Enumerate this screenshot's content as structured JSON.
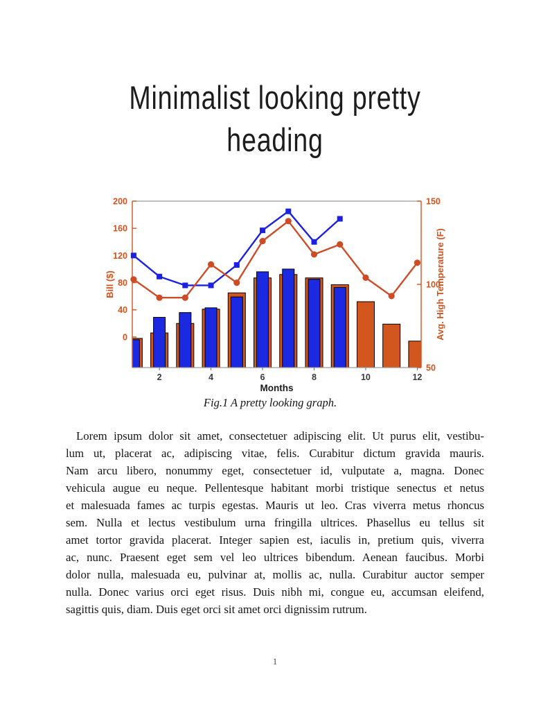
{
  "page": {
    "number": "1"
  },
  "heading": {
    "line1": "Minimalist looking pretty",
    "line2": "heading"
  },
  "figure": {
    "caption": "Fig.1 A pretty looking graph."
  },
  "body": {
    "lines": [
      "Lorem ipsum dolor sit amet, consectetuer adipiscing elit. Ut purus elit, vestibu-",
      "lum ut, placerat ac, adipiscing vitae, felis. Curabitur dictum gravida mauris.",
      "Nam arcu libero, nonummy eget, consectetuer id, vulputate a, magna. Donec",
      "vehicula augue eu neque. Pellentesque habitant morbi tristique senectus et netus",
      "et malesuada fames ac turpis egestas. Mauris ut leo. Cras viverra metus rhoncus",
      "sem. Nulla et lectus vestibulum urna fringilla ultrices. Phasellus eu tellus sit",
      "amet tortor gravida placerat. Integer sapien est, iaculis in, pretium quis, viverra",
      "ac, nunc. Praesent eget sem vel leo ultrices bibendum. Aenean faucibus. Morbi",
      "dolor nulla, malesuada eu, pulvinar at, mollis ac, nulla. Curabitur auctor semper",
      "nulla. Donec varius orci eget risus. Duis nibh mi, congue eu, accumsan eleifend,",
      "sagittis quis, diam. Duis eget orci sit amet orci dignissim rutrum."
    ]
  },
  "chart_data": {
    "type": "combo-bar-line",
    "x": [
      1,
      2,
      3,
      4,
      5,
      6,
      7,
      8,
      9,
      10,
      11,
      12
    ],
    "x_axis": {
      "label": "Months",
      "ticks": [
        2,
        4,
        6,
        8,
        10,
        12
      ],
      "range": [
        0.95,
        12.15
      ],
      "tick_color": "#3a3a3a",
      "label_color": "#1a1a1a"
    },
    "left_axis": {
      "label": "Bill ($)",
      "ticks": [
        0,
        40,
        80,
        120,
        160,
        200
      ],
      "range": [
        -45,
        200
      ],
      "color": "#d2521e"
    },
    "right_axis": {
      "label": "Avg. High Temperature (F)",
      "ticks": [
        50,
        100,
        150
      ],
      "range": [
        50,
        150
      ],
      "color": "#d2521e"
    },
    "box_color": "#9b9b9b",
    "series": [
      {
        "name": "orange-bars-bill",
        "type": "bar",
        "axis": "left",
        "color": "#d2571e",
        "values": [
          -2,
          6,
          20,
          41,
          65,
          87,
          92,
          87,
          77,
          52,
          19,
          -6
        ]
      },
      {
        "name": "blue-bars-bill",
        "type": "bar",
        "axis": "left",
        "color": "#1b2ae0",
        "values": [
          -4,
          29,
          36,
          43,
          59,
          96,
          100,
          85,
          73,
          null,
          null,
          null
        ]
      },
      {
        "name": "blue-line-bill",
        "type": "line",
        "marker": "square",
        "axis": "left",
        "color": "#1b20e2",
        "values": [
          120,
          89,
          76,
          76,
          106,
          157,
          185,
          140,
          174,
          null,
          null,
          null
        ]
      },
      {
        "name": "orange-line-temperature",
        "type": "line",
        "marker": "circle",
        "axis": "right",
        "color": "#cd4c26",
        "values": [
          103,
          92,
          92,
          112,
          101,
          126,
          138,
          118,
          124,
          104,
          93,
          113
        ]
      }
    ]
  }
}
